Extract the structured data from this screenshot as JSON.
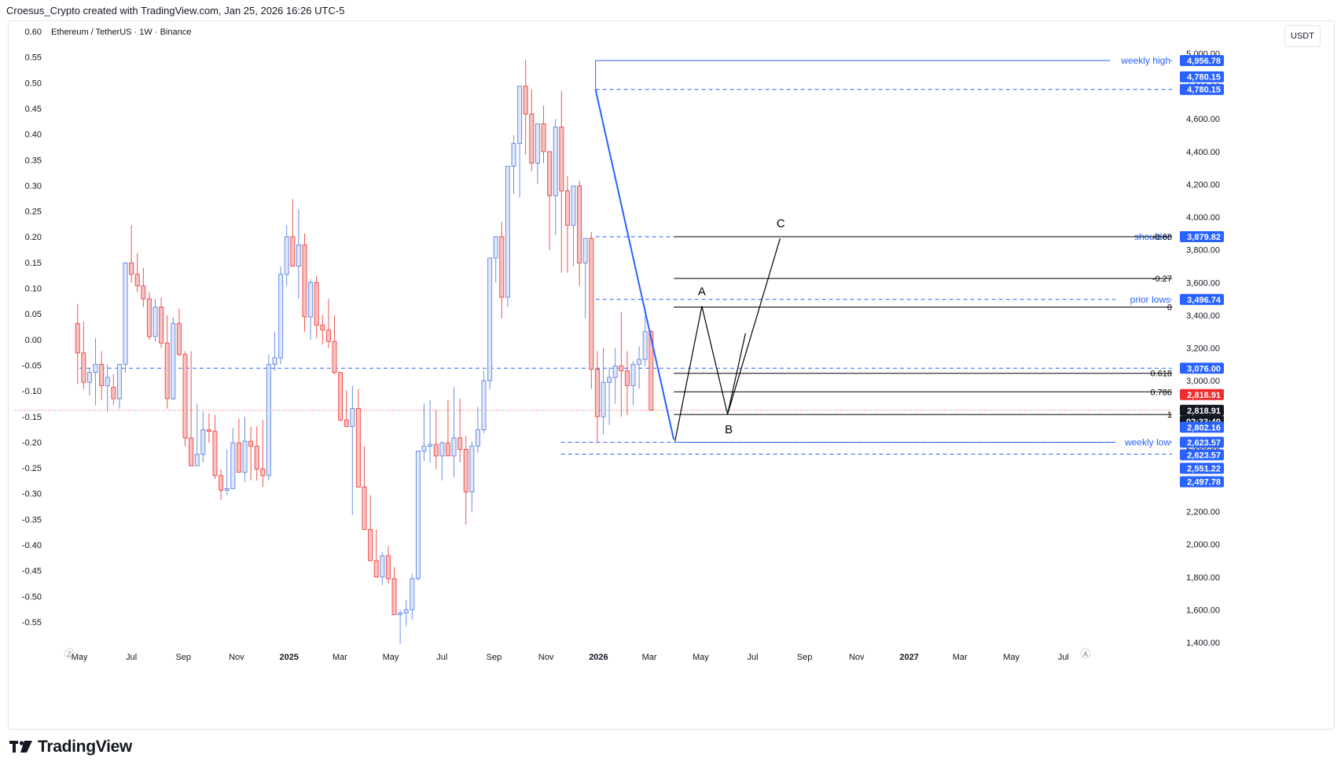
{
  "header": {
    "caption": "Croesus_Crypto created with TradingView.com, Jan 25, 2026 16:26 UTC-5"
  },
  "symbol": {
    "title": "Ethereum / TetherUS · 1W · Binance"
  },
  "unit_button": "USDT",
  "brand": {
    "name": "TradingView"
  },
  "colors": {
    "up": "#6a8fe6",
    "down": "#ef5350",
    "blue": "#2962ff",
    "black": "#000000",
    "axis_text": "#131722"
  },
  "left_axis": {
    "ticks": [
      {
        "v": 0.6,
        "label": "0.60"
      },
      {
        "v": 0.55,
        "label": "0.55"
      },
      {
        "v": 0.5,
        "label": "0.50"
      },
      {
        "v": 0.45,
        "label": "0.45"
      },
      {
        "v": 0.4,
        "label": "0.40"
      },
      {
        "v": 0.35,
        "label": "0.35"
      },
      {
        "v": 0.3,
        "label": "0.30"
      },
      {
        "v": 0.25,
        "label": "0.25"
      },
      {
        "v": 0.2,
        "label": "0.20"
      },
      {
        "v": 0.15,
        "label": "0.15"
      },
      {
        "v": 0.1,
        "label": "0.10"
      },
      {
        "v": 0.05,
        "label": "0.05"
      },
      {
        "v": 0.0,
        "label": "0.00"
      },
      {
        "v": -0.05,
        "label": "-0.05"
      },
      {
        "v": -0.1,
        "label": "-0.10"
      },
      {
        "v": -0.15,
        "label": "-0.15"
      },
      {
        "v": -0.2,
        "label": "-0.20"
      },
      {
        "v": -0.25,
        "label": "-0.25"
      },
      {
        "v": -0.3,
        "label": "-0.30"
      },
      {
        "v": -0.35,
        "label": "-0.35"
      },
      {
        "v": -0.4,
        "label": "-0.40"
      },
      {
        "v": -0.45,
        "label": "-0.45"
      },
      {
        "v": -0.5,
        "label": "-0.50"
      },
      {
        "v": -0.55,
        "label": "-0.55"
      }
    ]
  },
  "chart_data": {
    "type": "candlestick",
    "title": "Ethereum / TetherUS · 1W · Binance",
    "y_unit": "USDT",
    "ylim": [
      1400,
      5000
    ],
    "x_ticks": [
      {
        "label": "Z",
        "t": -1.7
      },
      {
        "label": "May",
        "t": 0
      },
      {
        "label": "Jul",
        "t": 8.7
      },
      {
        "label": "Sep",
        "t": 17.4
      },
      {
        "label": "Nov",
        "t": 26.3
      },
      {
        "label": "2025",
        "t": 35.1
      },
      {
        "label": "Mar",
        "t": 43.6
      },
      {
        "label": "May",
        "t": 52.1
      },
      {
        "label": "Jul",
        "t": 60.7
      },
      {
        "label": "Sep",
        "t": 69.4
      },
      {
        "label": "Nov",
        "t": 78.1
      },
      {
        "label": "2026",
        "t": 86.9
      },
      {
        "label": "Mar",
        "t": 95.4
      },
      {
        "label": "May",
        "t": 104
      },
      {
        "label": "Jul",
        "t": 112.7
      },
      {
        "label": "Sep",
        "t": 121.4
      },
      {
        "label": "Nov",
        "t": 130.1
      },
      {
        "label": "2027",
        "t": 138.9
      },
      {
        "label": "Mar",
        "t": 147.4
      },
      {
        "label": "May",
        "t": 156
      },
      {
        "label": "Jul",
        "t": 164.7
      },
      {
        "label": "A",
        "t": 168.4
      }
    ],
    "x_tick_bold": [
      "2025",
      "2026",
      "2027"
    ],
    "y_ticks": [
      5000,
      4800,
      4600,
      4400,
      4200,
      4000,
      3800,
      3600,
      3400,
      3200,
      3000,
      2800,
      2600,
      2400,
      2200,
      2000,
      1800,
      1600,
      1400
    ],
    "y_tick_labels": [
      "5,000.00",
      "4,800.00",
      "4,600.00",
      "4,400.00",
      "4,200.00",
      "4,000.00",
      "3,800.00",
      "3,600.00",
      "3,400.00",
      "3,200.00",
      "3,000.00",
      "2,800.00",
      "2,600.00",
      "2,400.00",
      "2,200.00",
      "2,000.00",
      "1,800.00",
      "1,600.00",
      "1,400.00"
    ],
    "candles_ohlc": [
      [
        3350,
        3470,
        2980,
        3170
      ],
      [
        3170,
        3360,
        2950,
        2990
      ],
      [
        2990,
        3080,
        2910,
        3050
      ],
      [
        3050,
        3260,
        2850,
        3100
      ],
      [
        3100,
        3180,
        2880,
        2970
      ],
      [
        2970,
        3100,
        2810,
        3020
      ],
      [
        2960,
        3040,
        2850,
        2890
      ],
      [
        2890,
        3060,
        2830,
        3100
      ],
      [
        3100,
        3700,
        3050,
        3720
      ],
      [
        3720,
        3950,
        3600,
        3650
      ],
      [
        3650,
        3780,
        3540,
        3580
      ],
      [
        3580,
        3690,
        3450,
        3500
      ],
      [
        3500,
        3540,
        3250,
        3270
      ],
      [
        3270,
        3500,
        3240,
        3450
      ],
      [
        3450,
        3510,
        3200,
        3230
      ],
      [
        3230,
        3400,
        2830,
        2890
      ],
      [
        2890,
        3390,
        2880,
        3350
      ],
      [
        3350,
        3440,
        3150,
        3160
      ],
      [
        3160,
        3180,
        2600,
        2650
      ],
      [
        2650,
        3180,
        2520,
        2480
      ],
      [
        2480,
        2860,
        2700,
        2550
      ],
      [
        2550,
        2810,
        2500,
        2700
      ],
      [
        2700,
        2800,
        2620,
        2690
      ],
      [
        2690,
        2790,
        2400,
        2420
      ],
      [
        2420,
        2460,
        2270,
        2330
      ],
      [
        2330,
        2580,
        2300,
        2340
      ],
      [
        2340,
        2710,
        2390,
        2620
      ],
      [
        2620,
        2770,
        2560,
        2440
      ],
      [
        2440,
        2780,
        2380,
        2630
      ],
      [
        2630,
        2720,
        2390,
        2600
      ],
      [
        2600,
        2720,
        2390,
        2460
      ],
      [
        2460,
        2760,
        2350,
        2420
      ],
      [
        2420,
        3160,
        2390,
        3100
      ],
      [
        3100,
        3300,
        3060,
        3140
      ],
      [
        3140,
        3700,
        3100,
        3650
      ],
      [
        3650,
        3950,
        3580,
        3880
      ],
      [
        3880,
        4110,
        3700,
        3700
      ],
      [
        3700,
        4050,
        3500,
        3830
      ],
      [
        3830,
        3900,
        3300,
        3390
      ],
      [
        3390,
        3620,
        3250,
        3600
      ],
      [
        3600,
        3640,
        3260,
        3340
      ],
      [
        3340,
        3400,
        3220,
        3310
      ],
      [
        3310,
        3500,
        3200,
        3240
      ],
      [
        3240,
        3400,
        3040,
        3050
      ],
      [
        3050,
        3020,
        2750,
        2760
      ],
      [
        2760,
        2940,
        2760,
        2720
      ],
      [
        2720,
        2970,
        2180,
        2830
      ],
      [
        2830,
        2950,
        2750,
        2350
      ],
      [
        2350,
        2600,
        2280,
        2090
      ],
      [
        2090,
        2300,
        2050,
        1900
      ],
      [
        1900,
        2090,
        1880,
        1800
      ],
      [
        1800,
        1950,
        1750,
        1930
      ],
      [
        1930,
        1990,
        1760,
        1790
      ],
      [
        1790,
        1860,
        1690,
        1570
      ],
      [
        1570,
        1600,
        1390,
        1580
      ],
      [
        1580,
        1660,
        1500,
        1600
      ],
      [
        1600,
        1820,
        1540,
        1790
      ],
      [
        1790,
        1980,
        1780,
        2570
      ],
      [
        2570,
        2860,
        2510,
        2600
      ],
      [
        2600,
        2880,
        2500,
        2610
      ],
      [
        2610,
        2820,
        2460,
        2540
      ],
      [
        2540,
        2630,
        2390,
        2620
      ],
      [
        2620,
        2880,
        2560,
        2540
      ],
      [
        2540,
        2960,
        2410,
        2650
      ],
      [
        2650,
        2890,
        2500,
        2580
      ],
      [
        2580,
        2660,
        2120,
        2320
      ],
      [
        2320,
        2630,
        2200,
        2600
      ],
      [
        2600,
        2840,
        2560,
        2700
      ],
      [
        2700,
        3060,
        2680,
        3000
      ],
      [
        3000,
        3560,
        2950,
        3750
      ],
      [
        3750,
        3860,
        3600,
        3880
      ],
      [
        3880,
        3970,
        3380,
        3510
      ],
      [
        3510,
        4300,
        3450,
        4310
      ],
      [
        4310,
        4500,
        4140,
        4450
      ],
      [
        4450,
        4780,
        4120,
        4800
      ],
      [
        4800,
        4960,
        4380,
        4630
      ],
      [
        4630,
        4780,
        4280,
        4330
      ],
      [
        4330,
        4480,
        4200,
        4570
      ],
      [
        4570,
        4680,
        4330,
        4400
      ],
      [
        4400,
        4380,
        3800,
        4130
      ],
      [
        4130,
        4600,
        3890,
        4550
      ],
      [
        4550,
        4770,
        3660,
        4160
      ],
      [
        4160,
        4250,
        3660,
        3950
      ],
      [
        3950,
        4080,
        3700,
        4190
      ],
      [
        4190,
        4220,
        3580,
        3720
      ],
      [
        3720,
        3800,
        3380,
        3870
      ],
      [
        3870,
        3910,
        2950,
        3070
      ],
      [
        3070,
        3180,
        2620,
        2780
      ],
      [
        2780,
        3200,
        2670,
        2990
      ],
      [
        2990,
        3080,
        2730,
        3020
      ],
      [
        3020,
        3200,
        2860,
        3090
      ],
      [
        3090,
        3420,
        2780,
        3060
      ],
      [
        3060,
        3180,
        2790,
        2970
      ],
      [
        2970,
        3120,
        2850,
        3100
      ],
      [
        3100,
        3210,
        2950,
        3130
      ],
      [
        3130,
        3400,
        3090,
        3300
      ],
      [
        3300,
        3310,
        2818,
        2819
      ]
    ],
    "levels": [
      {
        "price": 4956.78,
        "style": "solid-blue",
        "text": "weekly high",
        "from": 86.4
      },
      {
        "price": 4780.15,
        "style": "dashed-blue",
        "text": "",
        "from": 86.4
      },
      {
        "price": 3879.82,
        "style": "dashed-blue",
        "text": "shoulder",
        "from": 86.4
      },
      {
        "price": 3496.74,
        "style": "dashed-blue",
        "text": "prior lows",
        "from": 86.4
      },
      {
        "price": 3076.0,
        "style": "dashed-blue",
        "text": "",
        "from": 0
      },
      {
        "price": 2623.57,
        "style": "dashed-blue",
        "text": "",
        "from": 80.6
      },
      {
        "price": 2551.22,
        "style": "dashed-blue",
        "text": "",
        "from": 80.6
      },
      {
        "price": 2818.91,
        "style": "dotted-red",
        "text": "",
        "from": 0
      },
      {
        "price": 2623.0,
        "style": "solid-blue",
        "text": "weekly low",
        "from": 99.5
      }
    ],
    "fib": [
      {
        "price": 3879.82,
        "label": "-0.68"
      },
      {
        "price": 3625,
        "label": "-0.27"
      },
      {
        "price": 3450,
        "label": "0"
      },
      {
        "price": 3045,
        "label": "0.618"
      },
      {
        "price": 2932,
        "label": "0.786"
      },
      {
        "price": 2793,
        "label": "1"
      }
    ],
    "fib_from_t": 99.5,
    "price_badges": [
      {
        "price": 4956.78,
        "label": "4,956.78",
        "color": "#2962ff"
      },
      {
        "price": 4780.15,
        "label": "4,780.15",
        "color": "#2962ff",
        "dy": -16
      },
      {
        "price": 4780.15,
        "label": "4,780.15",
        "color": "#2962ff"
      },
      {
        "price": 3879.82,
        "label": "3,879.82",
        "color": "#2962ff"
      },
      {
        "price": 3496.74,
        "label": "3,496.74",
        "color": "#2962ff"
      },
      {
        "price": 3076.0,
        "label": "3,076.00",
        "color": "#2962ff"
      },
      {
        "price": 2818.91,
        "label": "2,818.91",
        "color": "#ef2d2d",
        "dy": -20
      },
      {
        "price": 2818.91,
        "label": "2,818.91",
        "color": "#131722"
      },
      {
        "price": 2818.91,
        "label": "02:33:49",
        "color": "#131722",
        "dy": 14
      },
      {
        "price": 2802.16,
        "label": "2,802.16",
        "color": "#2962ff",
        "dy": 18
      },
      {
        "price": 2623.57,
        "label": "2,623.57",
        "color": "#2962ff"
      },
      {
        "price": 2623.57,
        "label": "2,623.57",
        "color": "#2962ff",
        "dy": 16
      },
      {
        "price": 2551.22,
        "label": "2,551.22",
        "color": "#2962ff",
        "dy": 18
      },
      {
        "price": 2497.78,
        "label": "2,497.78",
        "color": "#2962ff",
        "dy": 24
      }
    ],
    "drawings": {
      "trend_down": {
        "from": [
          86.4,
          4780
        ],
        "to": [
          99.5,
          2640
        ]
      },
      "abc": [
        [
          99.7,
          2630
        ],
        [
          104.2,
          3455
        ],
        [
          108.5,
          2795
        ],
        [
          111.5,
          3290
        ],
        [
          108.5,
          2795
        ],
        [
          117.3,
          3870
        ]
      ],
      "labels": [
        {
          "text": "A",
          "t": 104.2,
          "p": 3455,
          "dy": -14
        },
        {
          "text": "B",
          "t": 108.7,
          "p": 2795,
          "dy": 24
        },
        {
          "text": "C",
          "t": 117.4,
          "p": 3870,
          "dy": -14
        }
      ]
    }
  }
}
